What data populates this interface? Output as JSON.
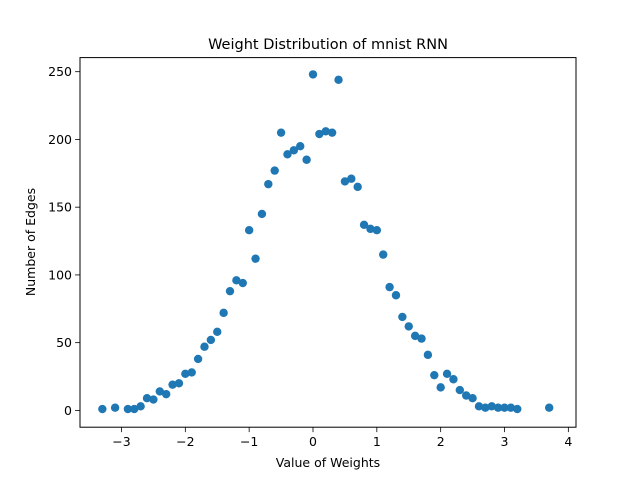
{
  "chart_data": {
    "type": "scatter",
    "title": "Weight Distribution of mnist RNN",
    "xlabel": "Value of Weights",
    "ylabel": "Number of Edges",
    "xlim": [
      -3.65,
      4.12
    ],
    "ylim": [
      -12.4,
      260.4
    ],
    "xticks": [
      -3,
      -2,
      -1,
      0,
      1,
      2,
      3,
      4
    ],
    "xtick_labels": [
      "−3",
      "−2",
      "−1",
      "0",
      "1",
      "2",
      "3",
      "4"
    ],
    "yticks": [
      0,
      50,
      100,
      150,
      200,
      250
    ],
    "ytick_labels": [
      "0",
      "50",
      "100",
      "150",
      "200",
      "250"
    ],
    "grid": false,
    "colors": {
      "marker": "#1f77b4",
      "axes": "#000000",
      "background": "#ffffff"
    },
    "series": [
      {
        "x": [
          -3.3,
          -3.1,
          -2.9,
          -2.8,
          -2.7,
          -2.6,
          -2.5,
          -2.4,
          -2.3,
          -2.2,
          -2.1,
          -2.0,
          -1.9,
          -1.8,
          -1.7,
          -1.6,
          -1.5,
          -1.4,
          -1.3,
          -1.2,
          -1.1,
          -1.0,
          -0.9,
          -0.8,
          -0.7,
          -0.6,
          -0.5,
          -0.4,
          -0.3,
          -0.2,
          -0.1,
          0.0,
          0.1,
          0.2,
          0.3,
          0.4,
          0.5,
          0.6,
          0.7,
          0.8,
          0.9,
          1.0,
          1.1,
          1.2,
          1.3,
          1.4,
          1.5,
          1.6,
          1.7,
          1.8,
          1.9,
          2.0,
          2.1,
          2.2,
          2.3,
          2.4,
          2.5,
          2.6,
          2.7,
          2.8,
          2.9,
          3.0,
          3.1,
          3.2,
          3.7
        ],
        "y": [
          1,
          2,
          1,
          1,
          3,
          9,
          8,
          14,
          12,
          19,
          20,
          27,
          28,
          38,
          47,
          52,
          58,
          72,
          88,
          96,
          94,
          133,
          112,
          145,
          167,
          177,
          205,
          189,
          192,
          195,
          185,
          248,
          204,
          206,
          205,
          244,
          169,
          171,
          165,
          137,
          134,
          133,
          115,
          91,
          85,
          69,
          62,
          55,
          53,
          41,
          26,
          17,
          27,
          23,
          15,
          11,
          9,
          3,
          2,
          3,
          2,
          2,
          2,
          1,
          2
        ]
      }
    ]
  }
}
